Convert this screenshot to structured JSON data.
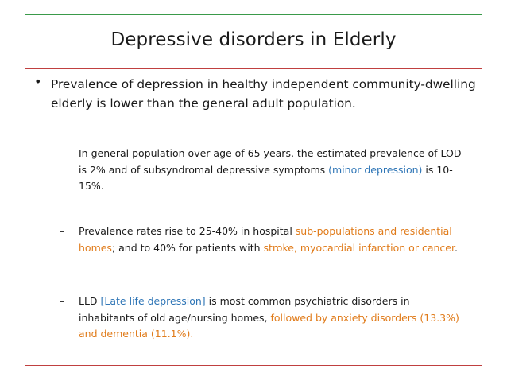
{
  "slide": {
    "title": "Depressive disorders in Elderly",
    "bullet": "Prevalence of depression in healthy independent community-dwelling elderly is lower than the general adult population.",
    "subs": [
      {
        "p1": "In general population over age of 65 years, the estimated prevalence of LOD is 2% and of subsyndromal depressive symptoms ",
        "hl1": "(minor depression)",
        "p2": " is 10-15%."
      },
      {
        "p1": "Prevalence rates rise to 25-40% in hospital ",
        "hl1": "sub-populations and residential homes",
        "p2": "; and to 40% for patients with ",
        "hl2": "stroke, myocardial infarction or cancer",
        "p3": "."
      },
      {
        "p1": "LLD ",
        "hl1": "[Late life depression]",
        "p2": " is most common psychiatric disorders in inhabitants of old age/nursing homes, ",
        "hl2": "followed by anxiety disorders (13.3%) and dementia (11.1%)."
      }
    ]
  },
  "colors": {
    "title_border": "#3a9a4a",
    "content_border": "#c04040",
    "blue": "#2e75b6",
    "orange": "#e07b1a"
  }
}
